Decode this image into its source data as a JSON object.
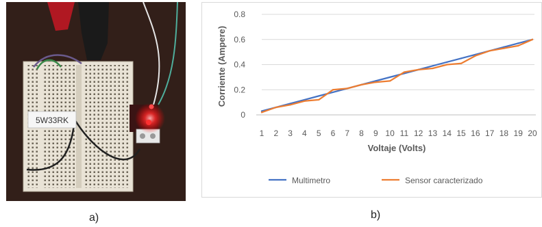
{
  "labels": {
    "panel_a": "a)",
    "panel_b": "b)"
  },
  "photo": {
    "resistor_text": "5W33RK",
    "colors": {
      "background": "#3a2620",
      "breadboard": "#e9e3d6",
      "led": "#ff2a2a",
      "board": "#3a1414"
    }
  },
  "chart_data": {
    "type": "line",
    "title": "",
    "xlabel": "Voltaje (Volts)",
    "ylabel": "Corriente (Ampere)",
    "categories": [
      "1",
      "2",
      "3",
      "4",
      "5",
      "6",
      "7",
      "8",
      "9",
      "10",
      "11",
      "12",
      "13",
      "14",
      "15",
      "16",
      "17",
      "18",
      "19",
      "20"
    ],
    "yticks": [
      "0",
      "0.2",
      "0.4",
      "0.6",
      "0.8"
    ],
    "ylim": [
      0,
      0.8
    ],
    "grid": true,
    "legend_position": "bottom",
    "series": [
      {
        "name": "Multimetro",
        "color": "#4472c4",
        "values": [
          0.03,
          0.06,
          0.09,
          0.12,
          0.15,
          0.18,
          0.21,
          0.24,
          0.27,
          0.3,
          0.33,
          0.36,
          0.39,
          0.42,
          0.45,
          0.48,
          0.51,
          0.54,
          0.57,
          0.6
        ]
      },
      {
        "name": "Sensor caracterizado",
        "color": "#ed7d31",
        "values": [
          0.02,
          0.06,
          0.08,
          0.11,
          0.12,
          0.2,
          0.21,
          0.24,
          0.26,
          0.27,
          0.34,
          0.36,
          0.37,
          0.4,
          0.41,
          0.47,
          0.51,
          0.53,
          0.55,
          0.6
        ]
      }
    ]
  }
}
